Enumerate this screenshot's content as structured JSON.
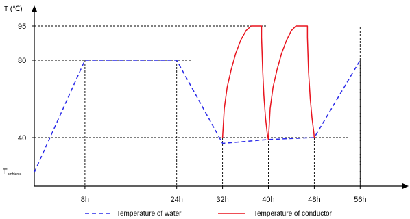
{
  "chart_data": {
    "type": "line",
    "ylabel": "T (℃)",
    "xlim": [
      0,
      56
    ],
    "ylim": [
      10,
      100
    ],
    "x_ticks": [
      {
        "value": 8,
        "label": "8h"
      },
      {
        "value": 24,
        "label": "24h"
      },
      {
        "value": 32,
        "label": "32h"
      },
      {
        "value": 40,
        "label": "40h"
      },
      {
        "value": 48,
        "label": "48h"
      },
      {
        "value": 56,
        "label": "56h"
      }
    ],
    "y_ticks": [
      {
        "value": 95,
        "label": "95"
      },
      {
        "value": 80,
        "label": "80"
      },
      {
        "value": 40,
        "label": "40"
      }
    ],
    "ambient_label": {
      "base": "T",
      "sub": "ambiente"
    },
    "ambient_value": 22,
    "reference_lines": [
      {
        "x": 8,
        "y": 80
      },
      {
        "x": 24,
        "y": 80
      },
      {
        "x": 32,
        "y": 40
      },
      {
        "x": 40,
        "y": 40
      },
      {
        "x": 48,
        "y": 40
      },
      {
        "x": 56,
        "y": 80
      }
    ],
    "series": [
      {
        "name": "Temperature of water",
        "color": "#2a2ae8",
        "style": "dashed",
        "points": [
          [
            0,
            22
          ],
          [
            8,
            80
          ],
          [
            24,
            80
          ],
          [
            32,
            37
          ],
          [
            40,
            39
          ],
          [
            48,
            40
          ],
          [
            56,
            80
          ]
        ]
      },
      {
        "name": "Temperature of conductor",
        "color": "#e8141e",
        "style": "solid",
        "points": [
          [
            32,
            40
          ],
          [
            32.3,
            55
          ],
          [
            32.8,
            66
          ],
          [
            33.5,
            75
          ],
          [
            34.3,
            83
          ],
          [
            35.2,
            89
          ],
          [
            36.1,
            93
          ],
          [
            37,
            95
          ],
          [
            38.8,
            95
          ],
          [
            38.8,
            90
          ],
          [
            39.0,
            75
          ],
          [
            39.2,
            62
          ],
          [
            39.5,
            50
          ],
          [
            39.8,
            42
          ],
          [
            40,
            39
          ],
          [
            40.3,
            55
          ],
          [
            40.8,
            66
          ],
          [
            41.5,
            75
          ],
          [
            42.3,
            83
          ],
          [
            43.2,
            89
          ],
          [
            44.0,
            93
          ],
          [
            44.8,
            95
          ],
          [
            46.8,
            95
          ],
          [
            46.8,
            90
          ],
          [
            47.0,
            74
          ],
          [
            47.3,
            60
          ],
          [
            47.6,
            50
          ],
          [
            47.9,
            43
          ],
          [
            48,
            40
          ]
        ]
      }
    ]
  }
}
